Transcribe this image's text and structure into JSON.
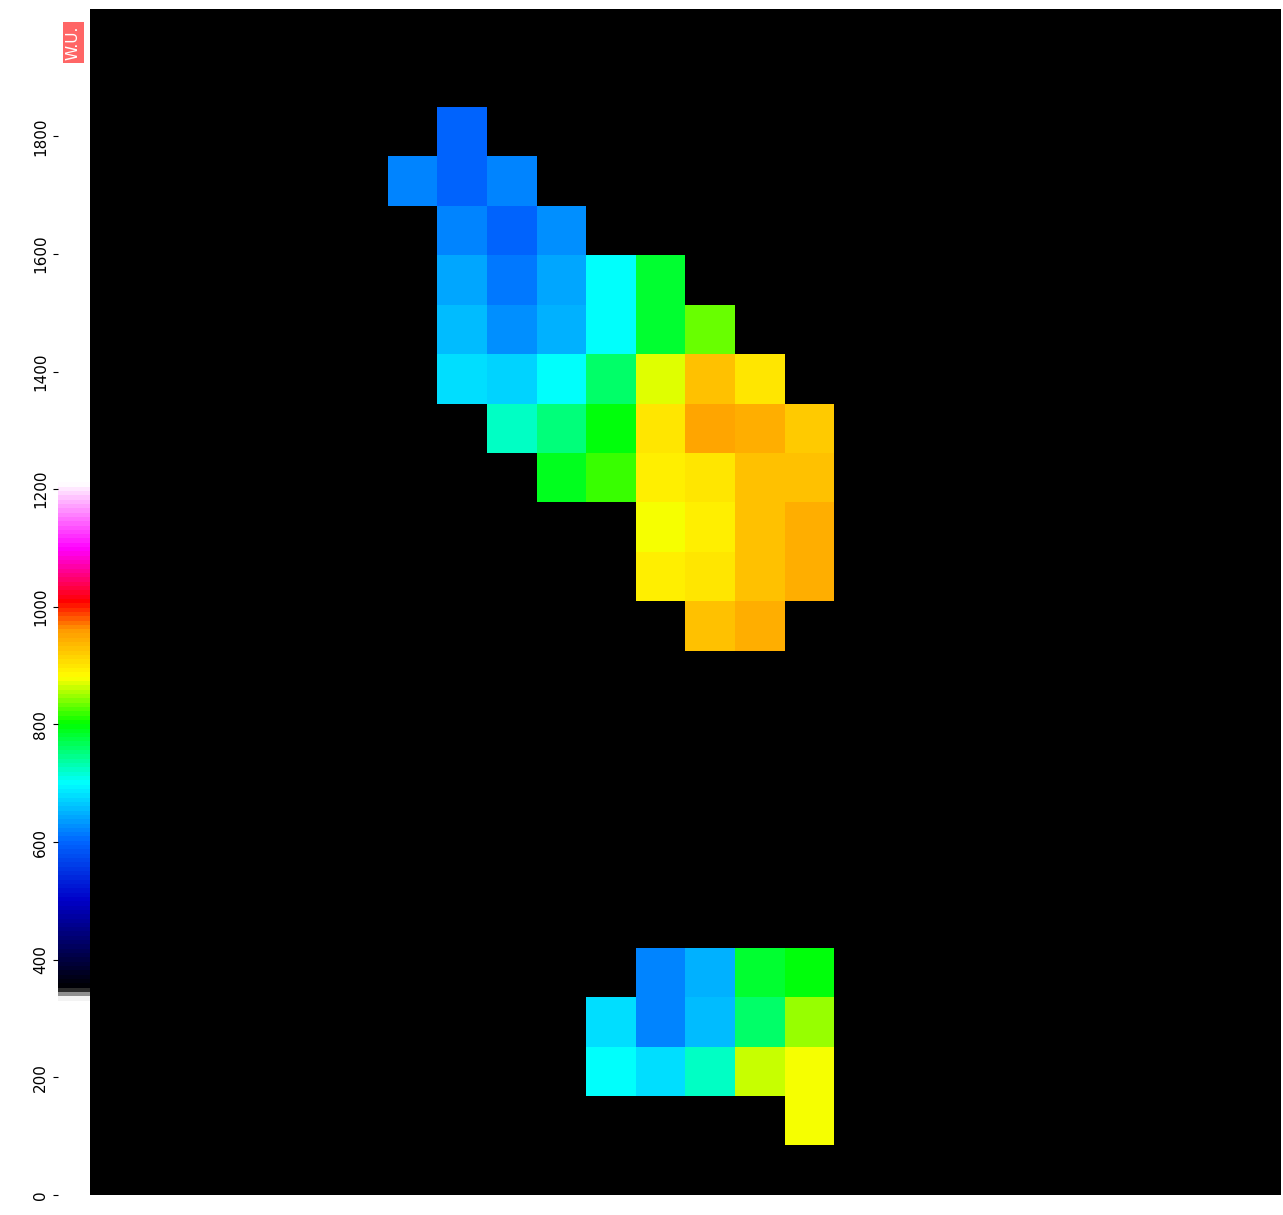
{
  "chart_data": {
    "type": "heatmap",
    "tick_labels": false,
    "colorbar_label": "W.U.",
    "colorbar_range": [
      0,
      1880
    ],
    "colorbar_ticks": [
      0,
      200,
      400,
      600,
      800,
      1000,
      1200,
      1400,
      1600,
      1800
    ],
    "cells": [
      [
        null,
        null,
        null,
        null,
        null,
        null,
        null,
        null,
        null,
        null,
        null,
        null,
        null,
        null,
        null,
        null,
        null,
        null,
        null,
        null,
        null,
        null,
        null,
        null
      ],
      [
        null,
        null,
        null,
        null,
        null,
        null,
        null,
        null,
        null,
        null,
        null,
        null,
        null,
        null,
        null,
        null,
        null,
        null,
        null,
        null,
        null,
        null,
        null,
        null
      ],
      [
        null,
        null,
        null,
        null,
        null,
        null,
        null,
        600,
        null,
        null,
        null,
        null,
        null,
        null,
        null,
        null,
        null,
        null,
        null,
        null,
        null,
        null,
        null,
        null
      ],
      [
        null,
        null,
        null,
        null,
        null,
        null,
        620,
        600,
        620,
        null,
        null,
        null,
        null,
        null,
        null,
        null,
        null,
        null,
        null,
        null,
        null,
        null,
        null,
        null
      ],
      [
        null,
        null,
        null,
        null,
        null,
        null,
        null,
        620,
        600,
        630,
        null,
        null,
        null,
        null,
        null,
        null,
        null,
        null,
        null,
        null,
        null,
        null,
        null,
        null
      ],
      [
        null,
        null,
        null,
        null,
        null,
        null,
        null,
        640,
        610,
        640,
        700,
        780,
        null,
        null,
        null,
        null,
        null,
        null,
        null,
        null,
        null,
        null,
        null,
        null
      ],
      [
        null,
        null,
        null,
        null,
        null,
        null,
        null,
        660,
        630,
        650,
        700,
        780,
        830,
        null,
        null,
        null,
        null,
        null,
        null,
        null,
        null,
        null,
        null,
        null
      ],
      [
        null,
        null,
        null,
        null,
        null,
        null,
        null,
        680,
        670,
        700,
        760,
        870,
        930,
        900,
        null,
        null,
        null,
        null,
        null,
        null,
        null,
        null,
        null,
        null
      ],
      [
        null,
        null,
        null,
        null,
        null,
        null,
        null,
        null,
        720,
        750,
        800,
        900,
        950,
        940,
        920,
        null,
        null,
        null,
        null,
        null,
        null,
        null,
        null,
        null
      ],
      [
        null,
        null,
        null,
        null,
        null,
        null,
        null,
        null,
        null,
        790,
        820,
        890,
        900,
        930,
        930,
        null,
        null,
        null,
        null,
        null,
        null,
        null,
        null,
        null
      ],
      [
        null,
        null,
        null,
        null,
        null,
        null,
        null,
        null,
        null,
        null,
        null,
        880,
        890,
        930,
        940,
        null,
        null,
        null,
        null,
        null,
        null,
        null,
        null,
        null
      ],
      [
        null,
        null,
        null,
        null,
        null,
        null,
        null,
        null,
        null,
        null,
        null,
        890,
        900,
        930,
        940,
        null,
        null,
        null,
        null,
        null,
        null,
        null,
        null,
        null
      ],
      [
        null,
        null,
        null,
        null,
        null,
        null,
        null,
        null,
        null,
        null,
        null,
        null,
        930,
        940,
        null,
        null,
        null,
        null,
        null,
        null,
        null,
        null,
        null,
        null
      ],
      [
        null,
        null,
        null,
        null,
        null,
        null,
        null,
        null,
        null,
        null,
        null,
        null,
        null,
        null,
        null,
        null,
        null,
        null,
        null,
        null,
        null,
        null,
        null,
        null
      ],
      [
        null,
        null,
        null,
        null,
        null,
        null,
        null,
        null,
        null,
        null,
        null,
        null,
        null,
        null,
        null,
        null,
        null,
        null,
        null,
        null,
        null,
        null,
        null,
        null
      ],
      [
        null,
        null,
        null,
        null,
        null,
        null,
        null,
        null,
        null,
        null,
        null,
        null,
        null,
        null,
        null,
        null,
        null,
        null,
        null,
        null,
        null,
        null,
        null,
        null
      ],
      [
        null,
        null,
        null,
        null,
        null,
        null,
        null,
        null,
        null,
        null,
        null,
        null,
        null,
        null,
        null,
        null,
        null,
        null,
        null,
        null,
        null,
        null,
        null,
        null
      ],
      [
        null,
        null,
        null,
        null,
        null,
        null,
        null,
        null,
        null,
        null,
        null,
        null,
        null,
        null,
        null,
        null,
        null,
        null,
        null,
        null,
        null,
        null,
        null,
        null
      ],
      [
        null,
        null,
        null,
        null,
        null,
        null,
        null,
        null,
        null,
        null,
        null,
        null,
        null,
        null,
        null,
        null,
        null,
        null,
        null,
        null,
        null,
        null,
        null,
        null
      ],
      [
        null,
        null,
        null,
        null,
        null,
        null,
        null,
        null,
        null,
        null,
        null,
        620,
        650,
        780,
        800,
        null,
        null,
        null,
        null,
        null,
        null,
        null,
        null,
        null
      ],
      [
        null,
        null,
        null,
        null,
        null,
        null,
        null,
        null,
        null,
        null,
        680,
        620,
        660,
        760,
        850,
        null,
        null,
        null,
        null,
        null,
        null,
        null,
        null,
        null
      ],
      [
        null,
        null,
        null,
        null,
        null,
        null,
        null,
        null,
        null,
        null,
        700,
        680,
        720,
        860,
        880,
        null,
        null,
        null,
        null,
        null,
        null,
        null,
        null,
        null
      ],
      [
        null,
        null,
        null,
        null,
        null,
        null,
        null,
        null,
        null,
        null,
        null,
        null,
        null,
        null,
        880,
        null,
        null,
        null,
        null,
        null,
        null,
        null,
        null,
        null
      ],
      [
        null,
        null,
        null,
        null,
        null,
        null,
        null,
        null,
        null,
        null,
        null,
        null,
        null,
        null,
        null,
        null,
        null,
        null,
        null,
        null,
        null,
        null,
        null,
        null
      ]
    ]
  }
}
